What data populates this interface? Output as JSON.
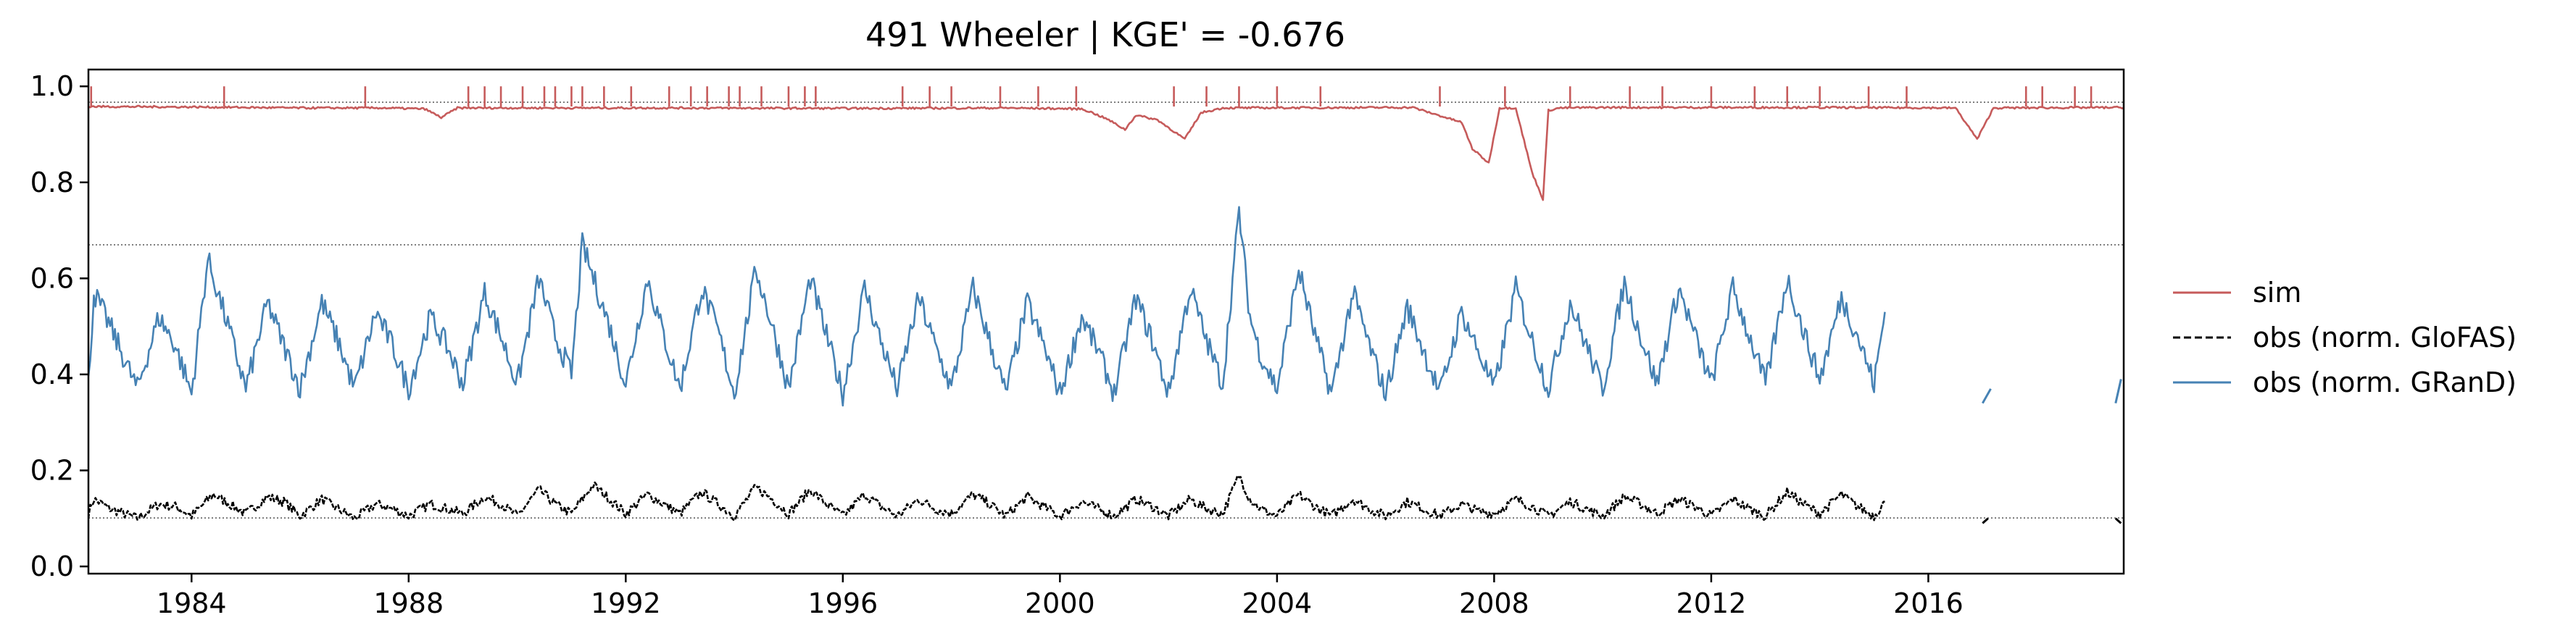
{
  "chart_data": {
    "type": "line",
    "title": "491  Wheeler | KGE' = -0.676",
    "xlabel": "",
    "ylabel": "",
    "xlim": [
      1982.1,
      2019.6
    ],
    "ylim": [
      -0.015,
      1.035
    ],
    "x_ticks": [
      1984,
      1988,
      1992,
      1996,
      2000,
      2004,
      2008,
      2012,
      2016
    ],
    "y_ticks": [
      0.0,
      0.2,
      0.4,
      0.6,
      0.8,
      1.0
    ],
    "grid": false,
    "legend_position": "right",
    "reference_lines": [
      0.967,
      0.67,
      0.101
    ],
    "series": [
      {
        "name": "sim",
        "color": "#c65b5b",
        "style": "solid",
        "baseline": 0.958,
        "x": [
          1982.1,
          1984.0,
          1986.0,
          1987.5,
          1988.3,
          1988.6,
          1988.9,
          1990.0,
          1993.0,
          1996.0,
          1999.0,
          2000.4,
          2000.6,
          2000.9,
          2001.2,
          2001.4,
          2001.8,
          2002.3,
          2002.6,
          2003.0,
          2006.5,
          2007.4,
          2007.6,
          2007.9,
          2008.1,
          2008.4,
          2008.7,
          2008.9,
          2009.0,
          2009.2,
          2010.0,
          2014.0,
          2016.5,
          2016.9,
          2017.2,
          2019.6
        ],
        "y": [
          0.958,
          0.957,
          0.955,
          0.955,
          0.953,
          0.935,
          0.955,
          0.955,
          0.955,
          0.954,
          0.955,
          0.953,
          0.945,
          0.93,
          0.91,
          0.94,
          0.93,
          0.89,
          0.945,
          0.955,
          0.956,
          0.925,
          0.87,
          0.84,
          0.955,
          0.955,
          0.82,
          0.765,
          0.95,
          0.955,
          0.956,
          0.956,
          0.955,
          0.89,
          0.955,
          0.956
        ],
        "spikes": [
          1982.15,
          1984.6,
          1987.2,
          1989.1,
          1989.4,
          1989.7,
          1990.1,
          1990.5,
          1990.7,
          1991.0,
          1991.2,
          1991.6,
          1992.1,
          1992.8,
          1993.2,
          1993.5,
          1993.9,
          1994.1,
          1994.5,
          1995.0,
          1995.3,
          1995.5,
          1997.1,
          1997.6,
          1998.0,
          1998.9,
          1999.6,
          2000.3,
          2002.1,
          2002.7,
          2003.3,
          2004.0,
          2004.8,
          2007.0,
          2008.2,
          2009.4,
          2010.5,
          2011.1,
          2012.0,
          2012.8,
          2013.4,
          2014.0,
          2014.9,
          2015.6,
          2017.8,
          2018.1,
          2018.7,
          2019.0
        ]
      },
      {
        "name": "obs (norm. GloFAS)",
        "color": "#000000",
        "style": "dashed",
        "x": [
          1982.1,
          1982.2,
          1982.5,
          1983.0,
          1983.4,
          1983.7,
          1984.0,
          1984.4,
          1984.7,
          1985.0,
          1985.4,
          1985.7,
          1986.0,
          1986.4,
          1986.7,
          1987.0,
          1987.4,
          1987.7,
          1988.0,
          1988.4,
          1988.7,
          1989.0,
          1989.4,
          1989.7,
          1990.0,
          1990.4,
          1990.7,
          1991.0,
          1991.4,
          1991.7,
          1992.0,
          1992.4,
          1992.7,
          1993.0,
          1993.4,
          1993.7,
          1994.0,
          1994.4,
          1994.7,
          1995.0,
          1995.4,
          1995.7,
          1996.0,
          1996.4,
          1996.7,
          1997.0,
          1997.4,
          1997.7,
          1998.0,
          1998.4,
          1998.7,
          1999.0,
          1999.4,
          1999.7,
          2000.0,
          2000.4,
          2000.7,
          2001.0,
          2001.4,
          2001.7,
          2002.0,
          2002.4,
          2002.7,
          2003.0,
          2003.3,
          2003.5,
          2003.7,
          2004.0,
          2004.4,
          2004.7,
          2005.0,
          2005.4,
          2005.7,
          2006.0,
          2006.4,
          2006.7,
          2007.0,
          2007.4,
          2007.7,
          2008.0,
          2008.4,
          2008.7,
          2009.0,
          2009.4,
          2009.7,
          2010.0,
          2010.4,
          2010.7,
          2011.0,
          2011.4,
          2011.7,
          2012.0,
          2012.4,
          2012.7,
          2013.0,
          2013.4,
          2013.7,
          2014.0,
          2014.4,
          2014.7,
          2015.0,
          2015.2
        ],
        "y": [
          0.11,
          0.14,
          0.12,
          0.1,
          0.13,
          0.125,
          0.105,
          0.15,
          0.13,
          0.11,
          0.145,
          0.135,
          0.105,
          0.14,
          0.12,
          0.1,
          0.13,
          0.12,
          0.105,
          0.13,
          0.12,
          0.11,
          0.145,
          0.13,
          0.105,
          0.16,
          0.13,
          0.11,
          0.17,
          0.14,
          0.11,
          0.15,
          0.13,
          0.11,
          0.155,
          0.13,
          0.105,
          0.165,
          0.14,
          0.11,
          0.16,
          0.13,
          0.105,
          0.15,
          0.125,
          0.105,
          0.14,
          0.12,
          0.11,
          0.15,
          0.13,
          0.105,
          0.145,
          0.125,
          0.105,
          0.135,
          0.12,
          0.105,
          0.14,
          0.125,
          0.105,
          0.14,
          0.12,
          0.11,
          0.19,
          0.14,
          0.12,
          0.105,
          0.15,
          0.125,
          0.105,
          0.14,
          0.12,
          0.105,
          0.135,
          0.12,
          0.105,
          0.13,
          0.115,
          0.11,
          0.14,
          0.125,
          0.105,
          0.135,
          0.12,
          0.105,
          0.145,
          0.13,
          0.11,
          0.14,
          0.125,
          0.105,
          0.14,
          0.12,
          0.105,
          0.155,
          0.13,
          0.11,
          0.15,
          0.125,
          0.105,
          0.135
        ],
        "extra_segments": [
          {
            "x": [
              2017.0,
              2017.1
            ],
            "y": [
              0.09,
              0.1
            ]
          },
          {
            "x": [
              2019.45,
              2019.55
            ],
            "y": [
              0.1,
              0.09
            ]
          }
        ]
      },
      {
        "name": "obs (norm. GRanD)",
        "color": "#4682b4",
        "style": "solid",
        "x": [
          1982.1,
          1982.2,
          1982.5,
          1983.0,
          1983.4,
          1983.7,
          1984.0,
          1984.3,
          1984.7,
          1985.0,
          1985.4,
          1985.7,
          1986.0,
          1986.4,
          1986.7,
          1987.0,
          1987.4,
          1987.7,
          1988.0,
          1988.4,
          1988.7,
          1989.0,
          1989.4,
          1989.7,
          1990.0,
          1990.4,
          1990.7,
          1991.0,
          1991.2,
          1991.7,
          1992.0,
          1992.4,
          1992.7,
          1993.0,
          1993.4,
          1993.7,
          1994.0,
          1994.4,
          1994.7,
          1995.0,
          1995.4,
          1995.7,
          1996.0,
          1996.4,
          1996.7,
          1997.0,
          1997.4,
          1997.7,
          1998.0,
          1998.4,
          1998.7,
          1999.0,
          1999.4,
          1999.7,
          2000.0,
          2000.4,
          2000.7,
          2001.0,
          2001.4,
          2001.7,
          2002.0,
          2002.4,
          2002.7,
          2003.0,
          2003.3,
          2003.5,
          2003.7,
          2004.0,
          2004.4,
          2004.7,
          2005.0,
          2005.4,
          2005.7,
          2006.0,
          2006.4,
          2006.7,
          2007.0,
          2007.4,
          2007.7,
          2008.0,
          2008.4,
          2008.7,
          2009.0,
          2009.4,
          2009.7,
          2010.0,
          2010.4,
          2010.7,
          2011.0,
          2011.4,
          2011.7,
          2012.0,
          2012.4,
          2012.7,
          2013.0,
          2013.4,
          2013.7,
          2014.0,
          2014.4,
          2014.7,
          2015.0,
          2015.2
        ],
        "y": [
          0.38,
          0.57,
          0.5,
          0.37,
          0.52,
          0.46,
          0.36,
          0.64,
          0.49,
          0.37,
          0.55,
          0.46,
          0.37,
          0.55,
          0.47,
          0.37,
          0.53,
          0.46,
          0.37,
          0.52,
          0.46,
          0.38,
          0.57,
          0.48,
          0.38,
          0.6,
          0.48,
          0.4,
          0.67,
          0.5,
          0.38,
          0.6,
          0.48,
          0.37,
          0.58,
          0.49,
          0.36,
          0.62,
          0.5,
          0.37,
          0.6,
          0.48,
          0.36,
          0.58,
          0.47,
          0.37,
          0.56,
          0.46,
          0.37,
          0.58,
          0.47,
          0.36,
          0.55,
          0.46,
          0.36,
          0.52,
          0.45,
          0.36,
          0.56,
          0.47,
          0.36,
          0.58,
          0.47,
          0.38,
          0.74,
          0.52,
          0.44,
          0.37,
          0.62,
          0.48,
          0.36,
          0.57,
          0.46,
          0.36,
          0.54,
          0.45,
          0.36,
          0.53,
          0.45,
          0.37,
          0.58,
          0.47,
          0.37,
          0.55,
          0.46,
          0.37,
          0.59,
          0.48,
          0.38,
          0.58,
          0.48,
          0.38,
          0.58,
          0.48,
          0.38,
          0.6,
          0.49,
          0.39,
          0.56,
          0.48,
          0.38,
          0.53
        ],
        "extra_segments": [
          {
            "x": [
              2017.0,
              2017.15
            ],
            "y": [
              0.34,
              0.37
            ]
          },
          {
            "x": [
              2019.45,
              2019.55
            ],
            "y": [
              0.34,
              0.39
            ]
          }
        ]
      }
    ]
  }
}
